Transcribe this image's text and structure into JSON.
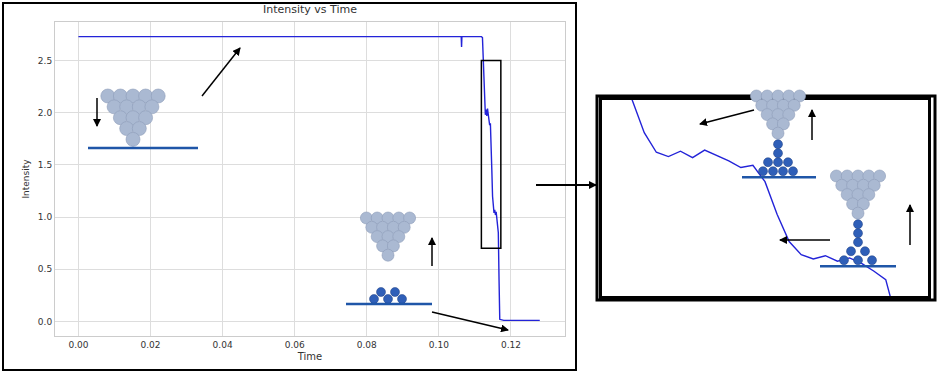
{
  "chart_data": {
    "type": "line",
    "title": "Intensity vs Time",
    "x_label": "Time",
    "y_label": "Intensity",
    "x": [
      0,
      0.02,
      0.04,
      0.06,
      0.08,
      0.1,
      0.1062,
      0.1063,
      0.1064,
      0.11,
      0.1118,
      0.1121,
      0.1123,
      0.1125,
      0.1127,
      0.1129,
      0.1131,
      0.1133,
      0.1135,
      0.1137,
      0.1139,
      0.1141,
      0.1143,
      0.1145,
      0.1147,
      0.1149,
      0.1151,
      0.1153,
      0.1155,
      0.1157,
      0.1159,
      0.1161,
      0.1163,
      0.1165,
      0.1167,
      0.1169,
      0.118,
      0.12,
      0.125,
      0.128
    ],
    "values": [
      2.73,
      2.73,
      2.73,
      2.73,
      2.73,
      2.73,
      2.73,
      2.63,
      2.73,
      2.73,
      2.73,
      2.72,
      2.5,
      2.2,
      2.02,
      1.98,
      2.03,
      1.97,
      2.04,
      1.99,
      1.94,
      1.88,
      1.9,
      1.75,
      1.45,
      1.2,
      1.08,
      1.04,
      1.07,
      1.02,
      1.05,
      1.0,
      0.93,
      0.85,
      0.4,
      0.02,
      0.01,
      0.01,
      0.01,
      0.01
    ],
    "color": "#2323d8",
    "xlim": [
      -0.0065,
      0.135
    ],
    "ylim": [
      -0.14,
      2.87
    ],
    "xticks": [
      {
        "value": 0,
        "label": "0.00"
      },
      {
        "value": 0.02,
        "label": "0.02"
      },
      {
        "value": 0.04,
        "label": "0.04"
      },
      {
        "value": 0.06,
        "label": "0.06"
      },
      {
        "value": 0.08,
        "label": "0.08"
      },
      {
        "value": 0.1,
        "label": "0.10"
      },
      {
        "value": 0.12,
        "label": "0.12"
      }
    ],
    "yticks": [
      {
        "value": 0,
        "label": "0.0"
      },
      {
        "value": 0.5,
        "label": "0.5"
      },
      {
        "value": 1,
        "label": "1.0"
      },
      {
        "value": 1.5,
        "label": "1.5"
      },
      {
        "value": 2,
        "label": "2.0"
      },
      {
        "value": 2.5,
        "label": "2.5"
      }
    ],
    "grid": true,
    "inset": {
      "xlim": [
        0.1118,
        0.1172
      ],
      "ylim": [
        0.7,
        2.5
      ],
      "tick_labels": false
    }
  }
}
